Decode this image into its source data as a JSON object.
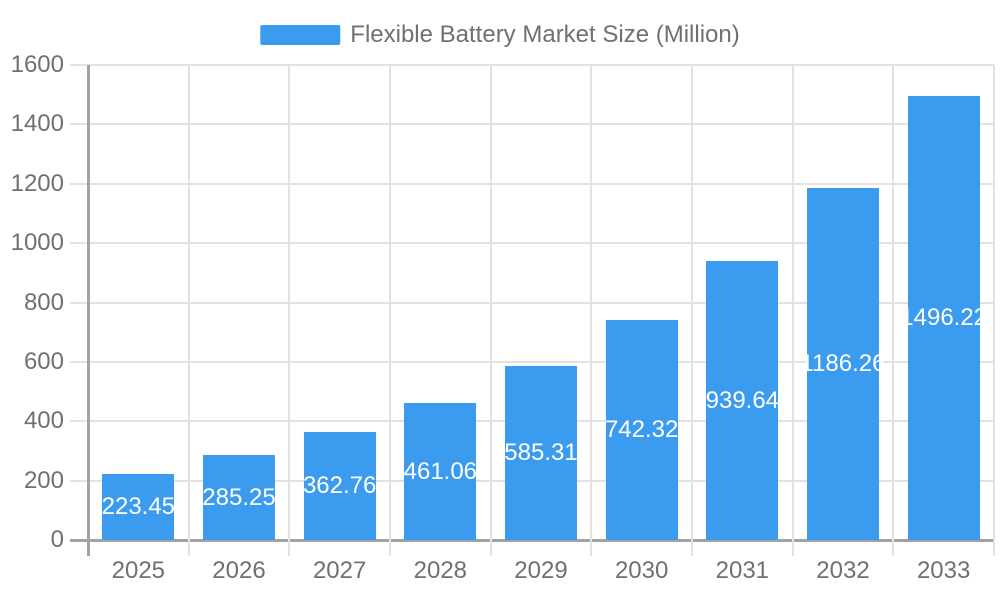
{
  "chart_data": {
    "type": "bar",
    "title": "Flexible Battery Market Size (Million)",
    "categories": [
      "2025",
      "2026",
      "2027",
      "2028",
      "2029",
      "2030",
      "2031",
      "2032",
      "2033"
    ],
    "series": [
      {
        "name": "Flexible Battery Market Size (Million)",
        "values": [
          223.45,
          285.25,
          362.76,
          461.06,
          585.31,
          742.32,
          939.64,
          1186.26,
          1496.22
        ]
      }
    ],
    "bar_labels": [
      "223.45",
      "285.25",
      "362.76",
      "461.06",
      "585.31",
      "742.32",
      "939.64",
      "1186.26",
      "1496.22"
    ],
    "xlabel": "",
    "ylabel": "",
    "ylim": [
      0,
      1600
    ],
    "ytick_step": 200,
    "yticks": [
      "0",
      "200",
      "400",
      "600",
      "800",
      "1000",
      "1200",
      "1400",
      "1600"
    ],
    "grid": true,
    "legend_position": "top"
  },
  "legend": {
    "label": "Flexible Battery Market Size (Million)"
  },
  "colors": {
    "bar": "#3b9bee",
    "grid": "#e2e2e2",
    "axis": "#a2a2a2",
    "tick_text": "#707070",
    "legend_text": "#707070",
    "bar_label": "#ffffff",
    "background": "#ffffff"
  }
}
